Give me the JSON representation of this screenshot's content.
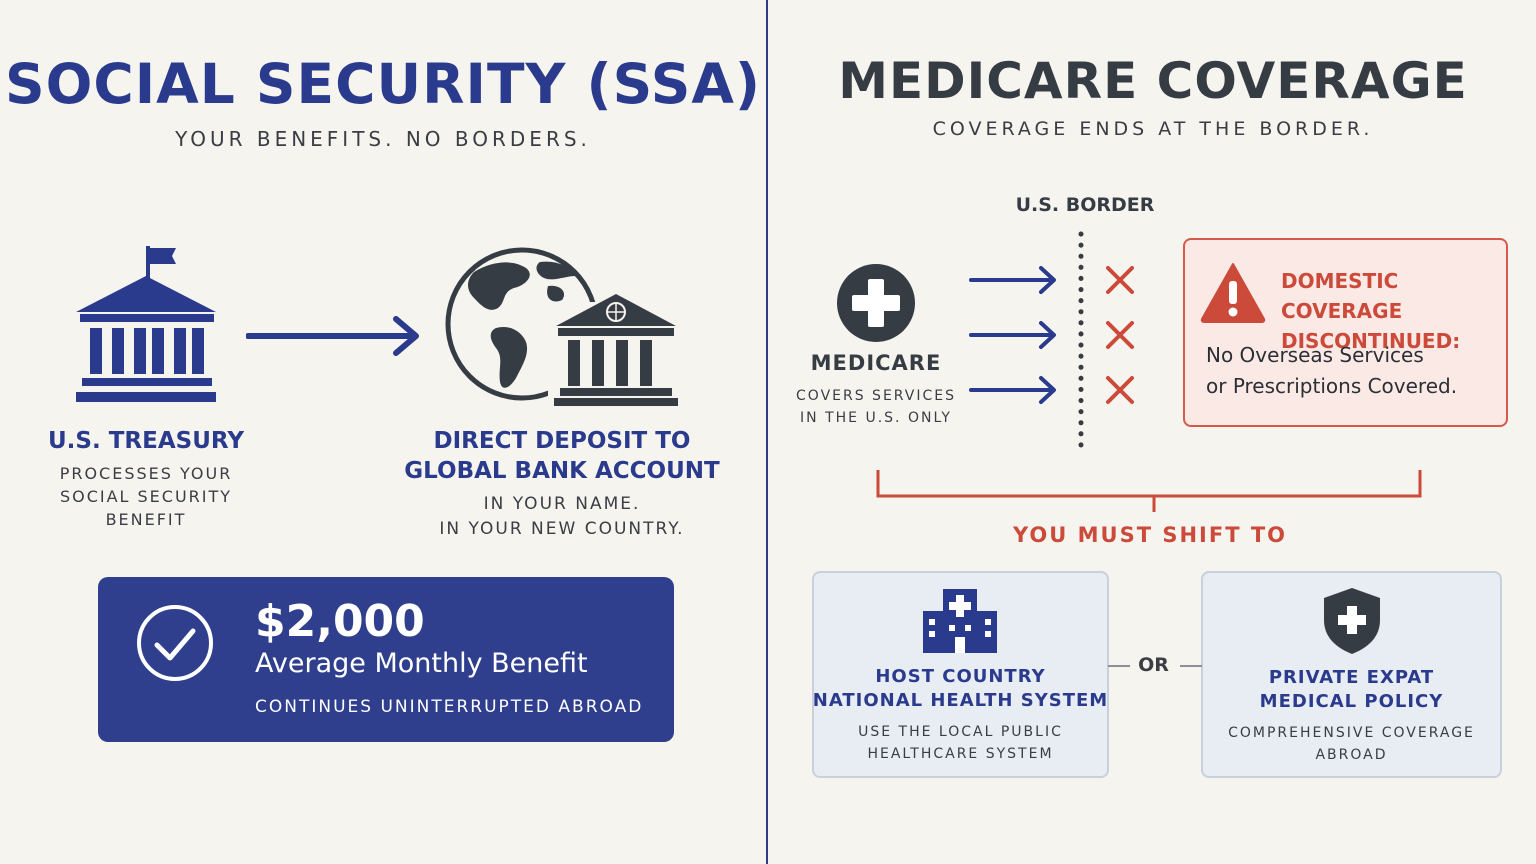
{
  "ssa": {
    "title": "SOCIAL SECURITY (SSA)",
    "subtitle": "YOUR BENEFITS. NO BORDERS.",
    "treasury": {
      "label": "U.S. TREASURY",
      "desc": [
        "PROCESSES YOUR",
        "SOCIAL SECURITY",
        "BENEFIT"
      ]
    },
    "deposit": {
      "label": [
        "DIRECT DEPOSIT TO",
        "GLOBAL BANK ACCOUNT"
      ],
      "desc": [
        "IN YOUR NAME.",
        "IN YOUR NEW COUNTRY."
      ]
    },
    "benefit": {
      "amount": "$2,000",
      "label": "Average Monthly Benefit",
      "note": "CONTINUES UNINTERRUPTED ABROAD"
    }
  },
  "medicare": {
    "title": "MEDICARE COVERAGE",
    "subtitle": "COVERAGE ENDS AT THE BORDER.",
    "border_label": "U.S. BORDER",
    "program": {
      "label": "MEDICARE",
      "desc": [
        "COVERS SERVICES",
        "IN THE U.S. ONLY"
      ]
    },
    "warning": {
      "title": [
        "DOMESTIC COVERAGE",
        "DISCONTINUED:"
      ],
      "text": [
        "No Overseas Services",
        "or Prescriptions Covered."
      ]
    },
    "shift_label": "YOU MUST SHIFT TO",
    "or_label": "OR",
    "options": [
      {
        "title": [
          "HOST COUNTRY",
          "NATIONAL HEALTH SYSTEM"
        ],
        "desc": [
          "USE THE LOCAL PUBLIC",
          "HEALTHCARE SYSTEM"
        ]
      },
      {
        "title": [
          "PRIVATE EXPAT",
          "MEDICAL POLICY"
        ],
        "desc": [
          "COMPREHENSIVE COVERAGE",
          "ABROAD"
        ]
      }
    ]
  },
  "colors": {
    "background": "#f6f4ef",
    "navy": "#2a3a8c",
    "charcoal": "#363c44",
    "alert_red": "#cc4a3a",
    "card_fill": "#e8ecf3"
  },
  "icons": [
    "government-building-icon",
    "globe-icon",
    "bank-icon",
    "arrow-right-icon",
    "check-circle-icon",
    "medical-cross-icon",
    "x-mark-icon",
    "warning-triangle-icon",
    "hospital-icon",
    "shield-cross-icon"
  ]
}
